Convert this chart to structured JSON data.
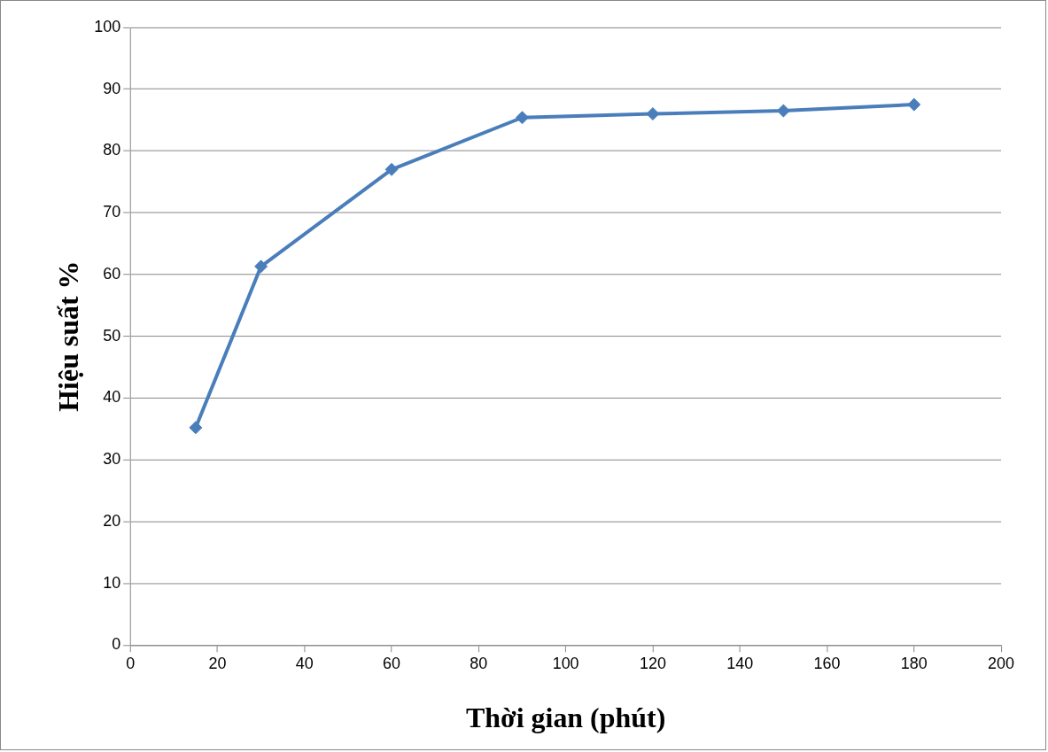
{
  "chart_data": {
    "type": "line",
    "xlabel": "Thời gian (phút)",
    "ylabel": "Hiệu suất %",
    "x": [
      15,
      30,
      60,
      90,
      120,
      150,
      180
    ],
    "series": [
      {
        "color": "#4a7ebb",
        "values": [
          35.2,
          61.3,
          77.0,
          85.4,
          86.0,
          86.5,
          87.5
        ]
      }
    ],
    "xlim": [
      0,
      200
    ],
    "xticks": [
      0,
      20,
      40,
      60,
      80,
      100,
      120,
      140,
      160,
      180,
      200
    ],
    "ylim": [
      0,
      100
    ],
    "yticks": [
      0,
      10,
      20,
      30,
      40,
      50,
      60,
      70,
      80,
      90,
      100
    ],
    "grid": "y",
    "legend": false,
    "marker": "diamond",
    "line_style": "solid"
  }
}
